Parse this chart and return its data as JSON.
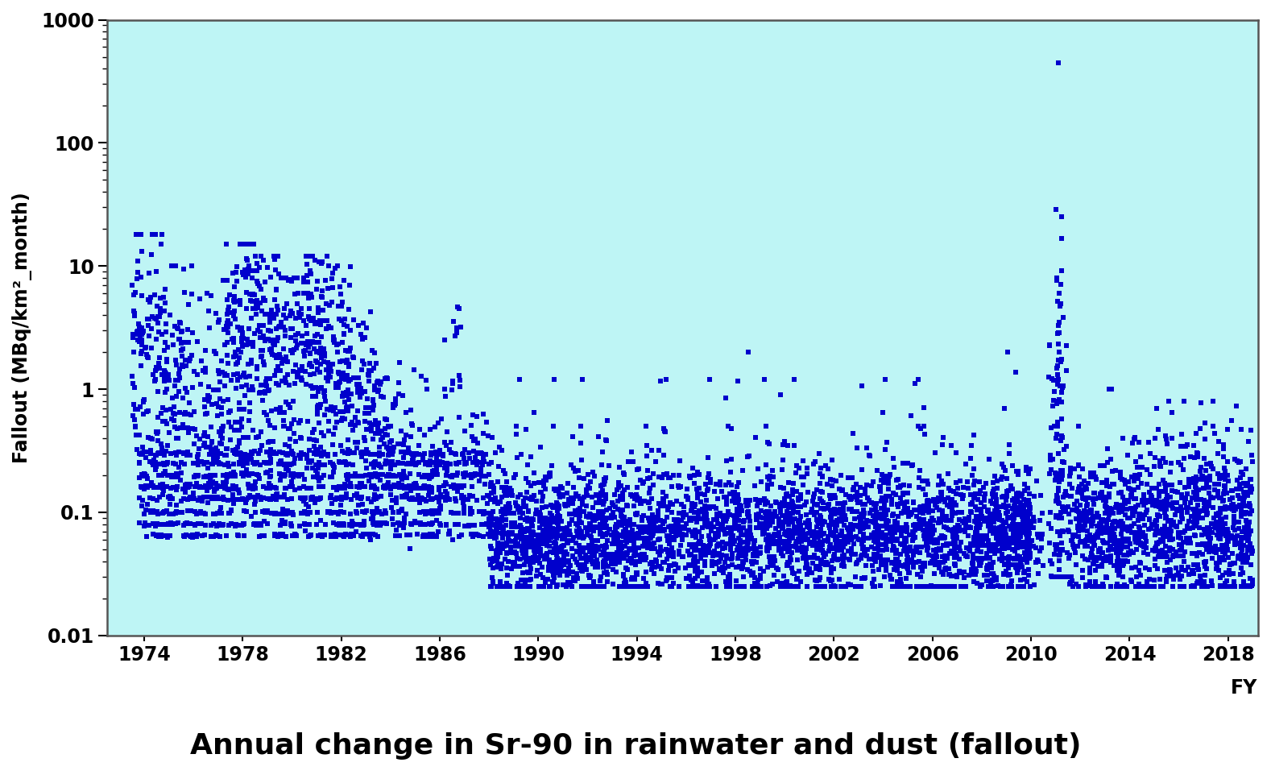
{
  "title": "Annual change in Sr-90 in rainwater and dust (fallout)",
  "xlabel": "FY",
  "ylabel": "Fallout (MBq/km²_month)",
  "xlim": [
    1972.5,
    2019.2
  ],
  "ylim": [
    0.01,
    1000
  ],
  "xticks": [
    1974,
    1978,
    1982,
    1986,
    1990,
    1994,
    1998,
    2002,
    2006,
    2010,
    2014,
    2018
  ],
  "background_color": "#bef5f5",
  "dot_color": "#0000cc",
  "marker_size": 18,
  "seed": 42
}
